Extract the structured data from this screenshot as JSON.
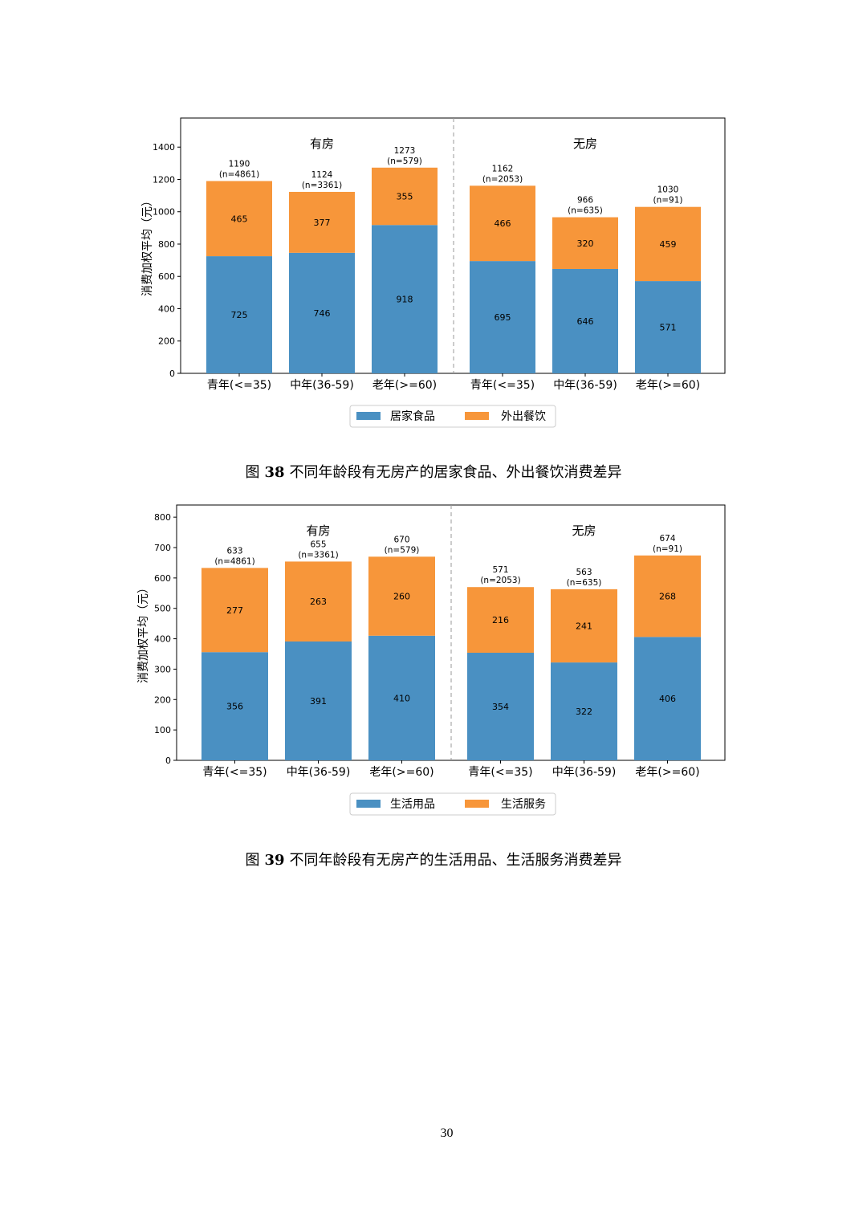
{
  "charts": [
    {
      "caption_prefix": "图",
      "caption_number": "38",
      "caption_text": "不同年龄段有无房产的居家食品、外出餐饮消费差异",
      "ylabel": "消费加权平均（元）",
      "legend": [
        "居家食品",
        "外出餐饮"
      ],
      "groups": [
        {
          "title": "有房",
          "bars": [
            {
              "category": "青年(<=35)",
              "total": "1190",
              "n": "(n=4861)",
              "bottom": 725,
              "top": 465
            },
            {
              "category": "中年(36-59)",
              "total": "1124",
              "n": "(n=3361)",
              "bottom": 746,
              "top": 377
            },
            {
              "category": "老年(>=60)",
              "total": "1273",
              "n": "(n=579)",
              "bottom": 918,
              "top": 355
            }
          ]
        },
        {
          "title": "无房",
          "bars": [
            {
              "category": "青年(<=35)",
              "total": "1162",
              "n": "(n=2053)",
              "bottom": 695,
              "top": 466
            },
            {
              "category": "中年(36-59)",
              "total": "966",
              "n": "(n=635)",
              "bottom": 646,
              "top": 320
            },
            {
              "category": "老年(>=60)",
              "total": "1030",
              "n": "(n=91)",
              "bottom": 571,
              "top": 459
            }
          ]
        }
      ]
    },
    {
      "caption_prefix": "图",
      "caption_number": "39",
      "caption_text": "不同年龄段有无房产的生活用品、生活服务消费差异",
      "ylabel": "消费加权平均（元）",
      "legend": [
        "生活用品",
        "生活服务"
      ],
      "groups": [
        {
          "title": "有房",
          "bars": [
            {
              "category": "青年(<=35)",
              "total": "633",
              "n": "(n=4861)",
              "bottom": 356,
              "top": 277
            },
            {
              "category": "中年(36-59)",
              "total": "655",
              "n": "(n=3361)",
              "bottom": 391,
              "top": 263
            },
            {
              "category": "老年(>=60)",
              "total": "670",
              "n": "(n=579)",
              "bottom": 410,
              "top": 260
            }
          ]
        },
        {
          "title": "无房",
          "bars": [
            {
              "category": "青年(<=35)",
              "total": "571",
              "n": "(n=2053)",
              "bottom": 354,
              "top": 216
            },
            {
              "category": "中年(36-59)",
              "total": "563",
              "n": "(n=635)",
              "bottom": 322,
              "top": 241
            },
            {
              "category": "老年(>=60)",
              "total": "674",
              "n": "(n=91)",
              "bottom": 406,
              "top": 268
            }
          ]
        }
      ]
    }
  ],
  "colors": {
    "bottom": "#4a90c2",
    "top": "#f7963a"
  },
  "page_number": "30",
  "chart_data": [
    {
      "type": "bar",
      "stacked": true,
      "categories": [
        "有房 青年(<=35)",
        "有房 中年(36-59)",
        "有房 老年(>=60)",
        "无房 青年(<=35)",
        "无房 中年(36-59)",
        "无房 老年(>=60)"
      ],
      "series": [
        {
          "name": "居家食品",
          "values": [
            725,
            746,
            918,
            695,
            646,
            571
          ]
        },
        {
          "name": "外出餐饮",
          "values": [
            465,
            377,
            355,
            466,
            320,
            459
          ]
        }
      ],
      "totals": [
        1190,
        1124,
        1273,
        1162,
        966,
        1030
      ],
      "ylabel": "消费加权平均（元）",
      "ylim": [
        0,
        1500
      ],
      "yticks": [
        0,
        200,
        400,
        600,
        800,
        1000,
        1200,
        1400
      ],
      "legend": "bottom-center",
      "grid": false
    },
    {
      "type": "bar",
      "stacked": true,
      "categories": [
        "有房 青年(<=35)",
        "有房 中年(36-59)",
        "有房 老年(>=60)",
        "无房 青年(<=35)",
        "无房 中年(36-59)",
        "无房 老年(>=60)"
      ],
      "series": [
        {
          "name": "生活用品",
          "values": [
            356,
            391,
            410,
            354,
            322,
            406
          ]
        },
        {
          "name": "生活服务",
          "values": [
            277,
            263,
            260,
            216,
            241,
            268
          ]
        }
      ],
      "totals": [
        633,
        655,
        670,
        571,
        563,
        674
      ],
      "ylabel": "消费加权平均（元）",
      "ylim": [
        0,
        810
      ],
      "yticks": [
        0,
        100,
        200,
        300,
        400,
        500,
        600,
        700,
        800
      ],
      "legend": "bottom-center",
      "grid": false
    }
  ]
}
